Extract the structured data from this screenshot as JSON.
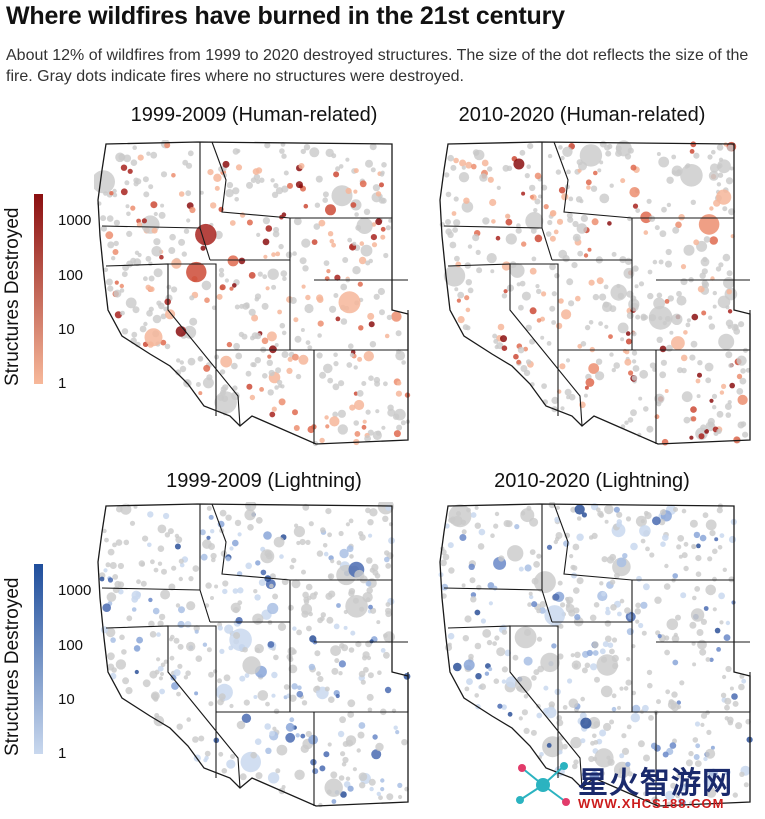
{
  "header": {
    "title": "Where wildfires have burned in the 21st century",
    "subtitle": "About 12% of wildfires from 1999 to 2020 destroyed structures. The size of the dot reflects the size of the fire. Gray dots indicate fires where no structures were destroyed."
  },
  "panels": [
    {
      "title": "1999-2009 (Human-related)",
      "scheme": "red"
    },
    {
      "title": "2010-2020 (Human-related)",
      "scheme": "red"
    },
    {
      "title": "1999-2009 (Lightning)",
      "scheme": "blue"
    },
    {
      "title": "2010-2020 (Lightning)",
      "scheme": "blue"
    }
  ],
  "legends": {
    "human": {
      "title": "Structures Destroyed",
      "ticks": [
        "1000",
        "100",
        "10",
        "1"
      ],
      "color_low": "#f7b89a",
      "color_high": "#8b0f10"
    },
    "lightning": {
      "title": "Structures Destroyed",
      "ticks": [
        "1000",
        "100",
        "10",
        "1"
      ],
      "color_low": "#c9d8ee",
      "color_high": "#1f4e9c"
    }
  },
  "colors": {
    "no_structures": "#c9c9c9",
    "state_border": "#1a1a1a"
  },
  "watermark": {
    "text": "星火智游网",
    "url": "WWW.XHCS188.COM"
  }
}
